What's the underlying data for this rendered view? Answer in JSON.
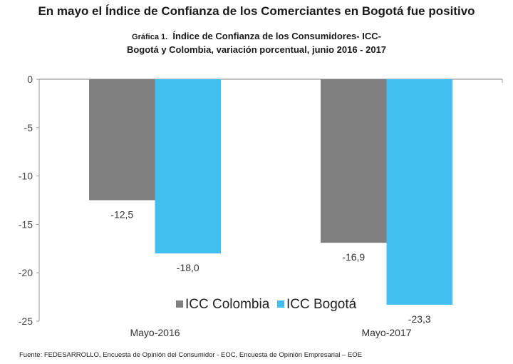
{
  "headline": "En mayo el Índice de Confianza de los Comerciantes en Bogotá fue positivo",
  "subtitle": {
    "prefix": "Gráfica 1.",
    "line1": "Índice de Confianza de los Consumidores- ICC-",
    "line2": "Bogotá y Colombia, variación porcentual,  junio 2016 - 2017"
  },
  "source": "Fuente: FEDESARROLLO, Encuesta de Opinión del Consumidor - EOC, Encuesta de Opinión Empresarial – EOE",
  "chart_data": {
    "type": "bar",
    "title": "Índice de Confianza de los Consumidores- ICC- Bogotá y Colombia, variación porcentual,  junio 2016 - 2017",
    "xlabel": "",
    "ylabel": "",
    "categories": [
      "Mayo-2016",
      "Mayo-2017"
    ],
    "series": [
      {
        "name": "ICC Colombia",
        "color": "#808080",
        "values": [
          -12.5,
          -16.9
        ],
        "labels": [
          "-12,5",
          "-16,9"
        ]
      },
      {
        "name": "ICC Bogotá",
        "color": "#40BFF0",
        "values": [
          -18.0,
          -23.3
        ],
        "labels": [
          "-18,0",
          "-23,3"
        ]
      }
    ],
    "ylim": [
      -25,
      0
    ],
    "yticks": [
      0,
      -5,
      -10,
      -15,
      -20,
      -25
    ],
    "ytick_labels": [
      "0",
      "-5",
      "-10",
      "-15",
      "-20",
      "-25"
    ],
    "grid": false,
    "legend": "bottom-center"
  }
}
